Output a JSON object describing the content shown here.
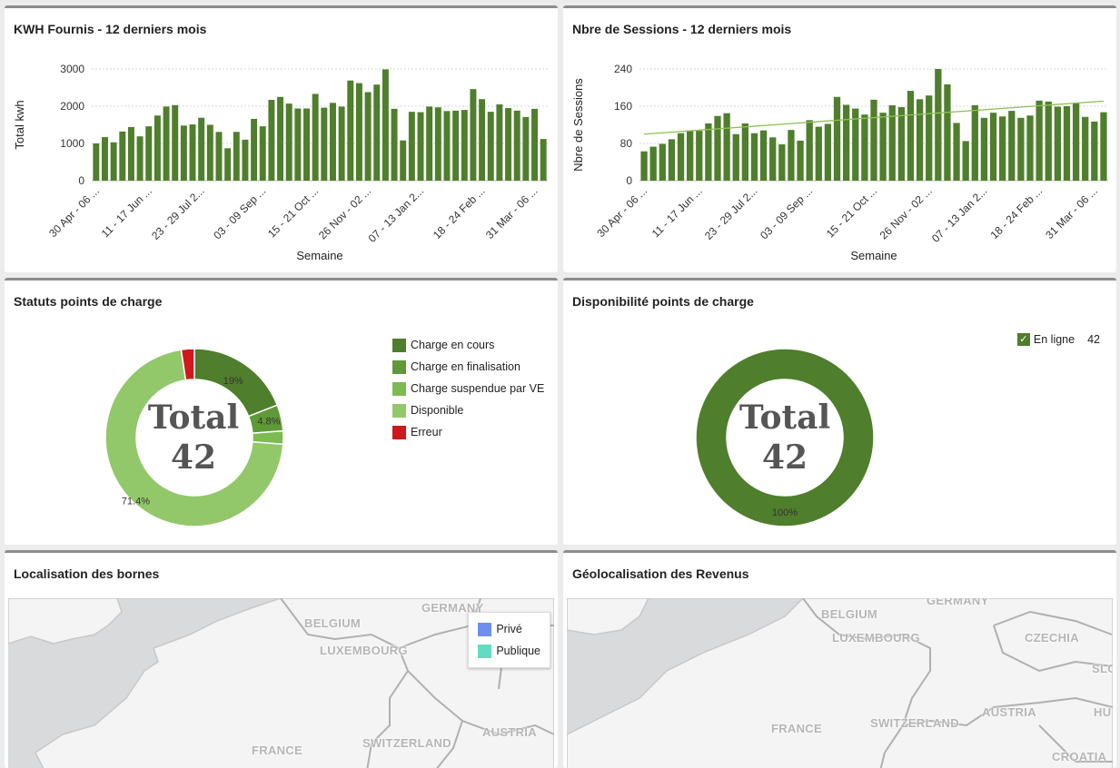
{
  "colors": {
    "bar": "#4f7e2c",
    "trend": "#8cc152",
    "charge_en_cours": "#4f7e2c",
    "charge_en_finalisation": "#609a38",
    "charge_suspendue": "#7cbb4f",
    "disponible": "#92c86a",
    "erreur": "#d0181c",
    "prive": "#6f8ff0",
    "publique": "#62dcc1"
  },
  "panels": {
    "kwh": {
      "title": "KWH Fournis - 12 derniers mois"
    },
    "sessions": {
      "title": "Nbre de Sessions - 12 derniers mois"
    },
    "statuts": {
      "title": "Statuts points de charge"
    },
    "dispo": {
      "title": "Disponibilité points de charge"
    },
    "localisation": {
      "title": "Localisation des bornes"
    },
    "geoloc": {
      "title": "Géolocalisation des Revenus"
    }
  },
  "chart_data": [
    {
      "type": "bar",
      "title": "KWH Fournis - 12 derniers mois",
      "xlabel": "Semaine",
      "ylabel": "Total kwh",
      "ylim": [
        0,
        3000
      ],
      "yticks": [
        "0",
        "1000",
        "2000",
        "3000"
      ],
      "grid": true,
      "xtick_labels": [
        "30 Apr - 06 ...",
        "11 - 17 Jun ...",
        "23 - 29 Jul 2...",
        "03 - 09 Sep ...",
        "15 - 21 Oct ...",
        "26 Nov - 02 ...",
        "07 - 13 Jan 2...",
        "18 - 24 Feb ...",
        "31 Mar - 06 ..."
      ],
      "values": [
        1000,
        1170,
        1030,
        1320,
        1440,
        1190,
        1460,
        1750,
        1990,
        2030,
        1480,
        1510,
        1690,
        1500,
        1310,
        870,
        1310,
        1100,
        1660,
        1460,
        2170,
        2250,
        2070,
        1940,
        1940,
        2330,
        1960,
        2090,
        1990,
        2690,
        2620,
        2380,
        2580,
        2990,
        1930,
        1080,
        1850,
        1840,
        1990,
        1970,
        1870,
        1880,
        1900,
        2460,
        2190,
        1850,
        2050,
        1950,
        1880,
        1710,
        1930,
        1120
      ]
    },
    {
      "type": "bar",
      "title": "Nbre de Sessions - 12 derniers mois",
      "xlabel": "Semaine",
      "ylabel": "Nbre de Sessions",
      "ylim": [
        0,
        240
      ],
      "yticks": [
        "0",
        "80",
        "160",
        "240"
      ],
      "grid": true,
      "trendline": true,
      "trend_start": 100,
      "trend_end": 171,
      "xtick_labels": [
        "30 Apr - 06 ...",
        "11 - 17 Jun ...",
        "23 - 29 Jul 2...",
        "03 - 09 Sep ...",
        "15 - 21 Oct ...",
        "26 Nov - 02 ...",
        "07 - 13 Jan 2...",
        "18 - 24 Feb ...",
        "31 Mar - 06 ..."
      ],
      "values": [
        63,
        73,
        79,
        89,
        102,
        108,
        107,
        123,
        139,
        145,
        100,
        123,
        102,
        108,
        93,
        78,
        109,
        86,
        130,
        116,
        122,
        180,
        163,
        155,
        142,
        174,
        146,
        162,
        158,
        193,
        175,
        183,
        240,
        207,
        124,
        85,
        162,
        135,
        146,
        138,
        150,
        135,
        140,
        172,
        170,
        159,
        160,
        166,
        137,
        127,
        147
      ]
    },
    {
      "type": "pie",
      "title": "Statuts points de charge",
      "center_label": "Total",
      "center_value": "42",
      "labels": [
        "Charge en cours",
        "Charge en finalisation",
        "Charge suspendue par VE",
        "Disponible",
        "Erreur"
      ],
      "values": [
        8,
        2,
        1,
        30,
        1
      ],
      "percent_labels": [
        "19%",
        "4.8%",
        "",
        "71.4%",
        ""
      ]
    },
    {
      "type": "pie",
      "title": "Disponibilité points de charge",
      "center_label": "Total",
      "center_value": "42",
      "labels": [
        "En ligne"
      ],
      "values": [
        42
      ],
      "percent_labels": [
        "100%"
      ],
      "legend_value": "42"
    }
  ],
  "maps": {
    "localisation": {
      "labels": [
        "GERMANY",
        "BELGIUM",
        "LUXEMBOURG",
        "FRANCE",
        "SWITZERLAND",
        "AUSTRIA"
      ],
      "legend": [
        "Privé",
        "Publique"
      ]
    },
    "geoloc": {
      "labels": [
        "GERMANY",
        "BELGIUM",
        "LUXEMBOURG",
        "CZECHIA",
        "FRANCE",
        "SWITZERLAND",
        "AUSTRIA",
        "SLO",
        "HU",
        "CROATIA"
      ]
    }
  }
}
